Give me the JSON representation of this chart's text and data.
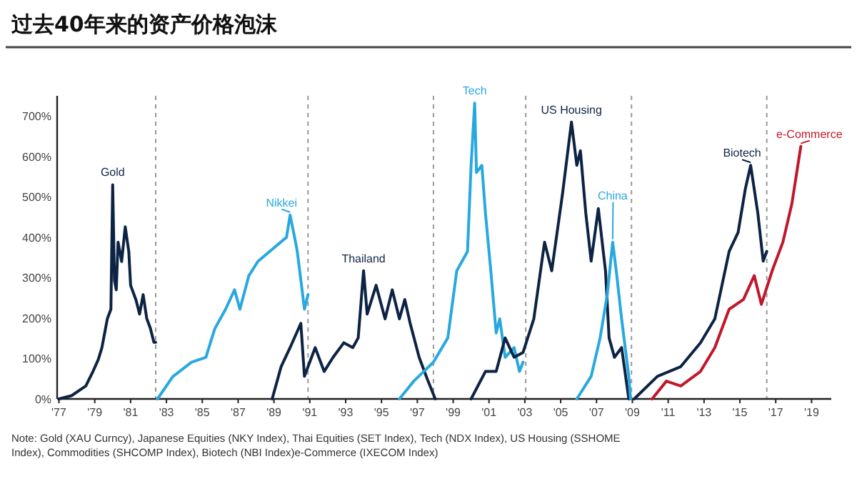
{
  "chart_data": {
    "type": "line",
    "title": "过去40年来的资产价格泡沫",
    "xlim": [
      1976.9,
      2020.1
    ],
    "ylim": [
      0,
      750
    ],
    "xticks": [
      {
        "value": 1977,
        "label": "'77"
      },
      {
        "value": 1979,
        "label": "'79"
      },
      {
        "value": 1981,
        "label": "'81"
      },
      {
        "value": 1983,
        "label": "'83"
      },
      {
        "value": 1985,
        "label": "'85"
      },
      {
        "value": 1987,
        "label": "'87"
      },
      {
        "value": 1989,
        "label": "'89"
      },
      {
        "value": 1991,
        "label": "'91"
      },
      {
        "value": 1993,
        "label": "'93"
      },
      {
        "value": 1995,
        "label": "'95"
      },
      {
        "value": 1997,
        "label": "'97"
      },
      {
        "value": 1999,
        "label": "'99"
      },
      {
        "value": 2001,
        "label": "'01"
      },
      {
        "value": 2003,
        "label": "'03"
      },
      {
        "value": 2005,
        "label": "'05"
      },
      {
        "value": 2007,
        "label": "'07"
      },
      {
        "value": 2009,
        "label": "'09"
      },
      {
        "value": 2011,
        "label": "'11"
      },
      {
        "value": 2013,
        "label": "'13"
      },
      {
        "value": 2015,
        "label": "'15"
      },
      {
        "value": 2017,
        "label": "'17"
      },
      {
        "value": 2019,
        "label": "'19"
      }
    ],
    "yticks": [
      {
        "value": 0,
        "label": "0%"
      },
      {
        "value": 100,
        "label": "100%"
      },
      {
        "value": 200,
        "label": "200%"
      },
      {
        "value": 300,
        "label": "300%"
      },
      {
        "value": 400,
        "label": "400%"
      },
      {
        "value": 500,
        "label": "500%"
      },
      {
        "value": 600,
        "label": "600%"
      },
      {
        "value": 700,
        "label": "700%"
      }
    ],
    "grid": false,
    "legend": false,
    "marker": "none",
    "line_style": "solid",
    "series": [
      {
        "name": "Gold",
        "color": "#0d2344",
        "x": [
          1977.0,
          1977.7,
          1978.5,
          1978.9,
          1979.2,
          1979.4,
          1979.7,
          1979.9,
          1980.0,
          1980.1,
          1980.2,
          1980.3,
          1980.5,
          1980.7,
          1980.9,
          1981.0,
          1981.3,
          1981.5,
          1981.7,
          1981.9,
          1982.1,
          1982.3,
          1982.4
        ],
        "values": [
          0,
          8,
          32,
          68,
          98,
          127,
          198,
          222,
          530,
          293,
          270,
          388,
          340,
          426,
          364,
          281,
          245,
          210,
          258,
          199,
          175,
          140,
          140
        ]
      },
      {
        "name": "Nikkei",
        "color": "#29a8df",
        "x": [
          1982.5,
          1983.35,
          1984.4,
          1985.2,
          1985.7,
          1986.3,
          1986.8,
          1987.1,
          1987.6,
          1988.1,
          1988.9,
          1989.7,
          1989.9,
          1990.2,
          1990.3,
          1990.5,
          1990.7,
          1990.9
        ],
        "values": [
          0,
          55,
          91,
          103,
          174,
          222,
          270,
          222,
          305,
          340,
          370,
          400,
          455,
          389,
          365,
          294,
          222,
          258
        ]
      },
      {
        "name": "Thailand",
        "color": "#0d2344",
        "x": [
          1988.9,
          1989.4,
          1989.9,
          1990.5,
          1990.7,
          1991.3,
          1991.8,
          1992.3,
          1992.9,
          1993.4,
          1993.7,
          1994.0,
          1994.2,
          1994.7,
          1995.2,
          1995.6,
          1996.0,
          1996.3,
          1996.6,
          1997.1,
          1997.6,
          1998.0
        ],
        "values": [
          0,
          80,
          127,
          187,
          56,
          127,
          68,
          103,
          139,
          127,
          151,
          317,
          210,
          281,
          198,
          270,
          198,
          246,
          187,
          103,
          44,
          0
        ]
      },
      {
        "name": "Tech",
        "color": "#29a8df",
        "x": [
          1996.0,
          1996.8,
          1997.9,
          1998.7,
          1999.2,
          1999.8,
          2000.0,
          2000.2,
          2000.3,
          2000.6,
          2000.8,
          2001.1,
          2001.4,
          2001.6,
          2001.9,
          2002.4,
          2002.7,
          2002.9
        ],
        "values": [
          0,
          44,
          91,
          151,
          317,
          365,
          578,
          732,
          560,
          578,
          460,
          317,
          163,
          198,
          103,
          127,
          68,
          91
        ]
      },
      {
        "name": "US Housing",
        "color": "#0d2344",
        "x": [
          2000.0,
          2000.8,
          2001.4,
          2001.9,
          2002.4,
          2002.9,
          2003.5,
          2004.1,
          2004.5,
          2005.1,
          2005.6,
          2005.9,
          2006.1,
          2006.4,
          2006.7,
          2007.1,
          2007.5,
          2007.7,
          2008.0,
          2008.4,
          2008.8
        ],
        "values": [
          0,
          68,
          68,
          151,
          103,
          115,
          198,
          388,
          317,
          507,
          685,
          578,
          614,
          460,
          341,
          471,
          317,
          151,
          103,
          127,
          0
        ]
      },
      {
        "name": "China",
        "color": "#29a8df",
        "x": [
          2005.9,
          2006.7,
          2007.2,
          2007.6,
          2007.9,
          2008.1,
          2008.4,
          2008.8,
          2008.9
        ],
        "values": [
          0,
          56,
          151,
          258,
          388,
          317,
          198,
          56,
          0
        ]
      },
      {
        "name": "Biotech",
        "color": "#0d2344",
        "x": [
          2009.1,
          2010.4,
          2011.7,
          2012.8,
          2013.6,
          2014.4,
          2014.9,
          2015.3,
          2015.6,
          2016.0,
          2016.3,
          2016.5
        ],
        "values": [
          0,
          56,
          80,
          139,
          198,
          365,
          412,
          519,
          578,
          460,
          341,
          365
        ]
      },
      {
        "name": "e-Commerce",
        "color": "#c0182a",
        "x": [
          2010.1,
          2010.9,
          2011.7,
          2012.8,
          2013.6,
          2014.4,
          2015.2,
          2015.8,
          2016.2,
          2016.8,
          2017.4,
          2017.9,
          2018.4
        ],
        "values": [
          0,
          44,
          32,
          68,
          127,
          222,
          246,
          305,
          234,
          317,
          388,
          483,
          625
        ]
      }
    ],
    "ref_lines": [
      {
        "axis": "x",
        "value": 1982.4,
        "color": "#999999",
        "line_style": "dashed"
      },
      {
        "axis": "x",
        "value": 1990.9,
        "color": "#999999",
        "line_style": "dashed"
      },
      {
        "axis": "x",
        "value": 1997.9,
        "color": "#999999",
        "line_style": "dashed"
      },
      {
        "axis": "x",
        "value": 2003.05,
        "color": "#999999",
        "line_style": "dashed"
      },
      {
        "axis": "x",
        "value": 2008.95,
        "color": "#999999",
        "line_style": "dashed"
      },
      {
        "axis": "x",
        "value": 2016.5,
        "color": "#999999",
        "line_style": "dashed"
      }
    ],
    "annotations": [
      "Note: Gold (XAU Curncy), Japanese Equities (NKY Index), Thai Equities (SET Index), Tech (NDX Index), US Housing (SSHOME Index), Commodities (SHCOMP Index), Biotech (NBI Index)e-Commerce (IXECOM Index)"
    ]
  }
}
